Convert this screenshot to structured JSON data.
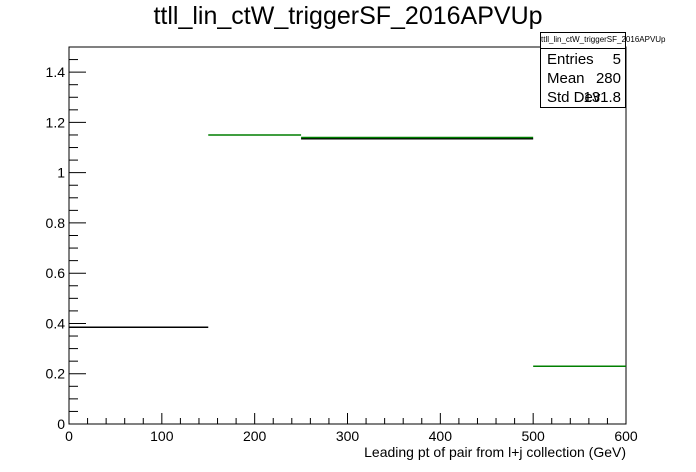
{
  "chart_data": {
    "type": "histogram",
    "title": "ttll_lin_ctW_triggerSF_2016APVUp",
    "xlabel": "Leading pt of pair from l+j collection (GeV)",
    "ylabel": "",
    "xlim": [
      0,
      600
    ],
    "ylim": [
      0,
      1.5
    ],
    "x_ticks": [
      0,
      100,
      200,
      300,
      400,
      500,
      600
    ],
    "y_ticks": [
      0,
      0.2,
      0.4,
      0.6,
      0.8,
      1,
      1.2,
      1.4
    ],
    "bins": [
      {
        "low": 0,
        "high": 150,
        "value": 0.385,
        "color": "#000000"
      },
      {
        "low": 150,
        "high": 250,
        "value": 1.15,
        "color": "#007f00"
      },
      {
        "low": 250,
        "high": 500,
        "value": 1.14,
        "color": "#007f00"
      },
      {
        "low": 500,
        "high": 600,
        "value": 0.23,
        "color": "#007f00"
      }
    ],
    "overlay": [
      {
        "low": 250,
        "high": 500,
        "value": 1.135,
        "color": "#000000"
      }
    ],
    "stats": {
      "name": "ttll_lin_ctW_triggerSF_2016APVUp",
      "rows": [
        {
          "label": "Entries",
          "value": "5"
        },
        {
          "label": "Mean",
          "value": "280"
        },
        {
          "label": "Std Dev",
          "value": "131.8"
        }
      ]
    },
    "grid": false,
    "legend": "top-right"
  }
}
